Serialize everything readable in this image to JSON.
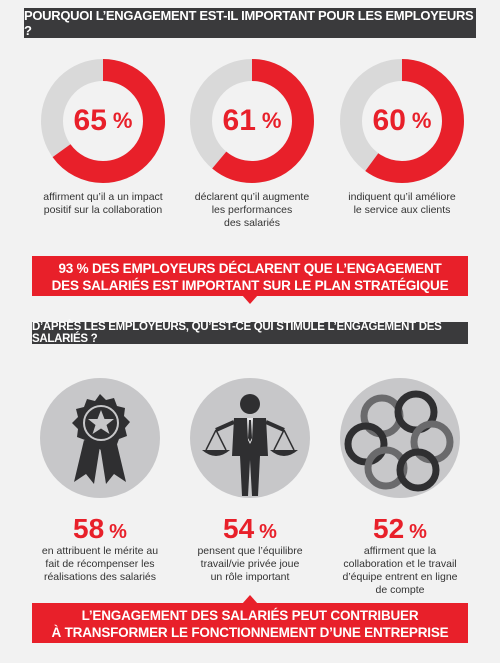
{
  "header": {
    "title": "POURQUOI L’ENGAGEMENT EST-IL IMPORTANT POUR LES EMPLOYEURS ?"
  },
  "stats_top": [
    {
      "value": "65",
      "unit": "%",
      "fraction": 0.65,
      "caption": [
        "affirment qu’il a un impact",
        "positif sur la collaboration"
      ]
    },
    {
      "value": "61",
      "unit": "%",
      "fraction": 0.61,
      "caption": [
        "déclarent qu’il augmente",
        "les performances",
        "des salariés"
      ]
    },
    {
      "value": "60",
      "unit": "%",
      "fraction": 0.6,
      "caption": [
        "indiquent qu’il améliore",
        "le service aux clients"
      ]
    }
  ],
  "highlight": {
    "strong": "93 %",
    "line1_rest": " DES EMPLOYEURS DÉCLARENT QUE L’ENGAGEMENT",
    "line2": "DES SALARIÉS EST IMPORTANT SUR LE PLAN STRATÉGIQUE"
  },
  "section2": {
    "title": "D’APRÈS LES EMPLOYEURS, QU’EST-CE QUI STIMULE L’ENGAGEMENT DES SALARIÉS ?"
  },
  "stats_bottom": [
    {
      "icon": "award-ribbon-icon",
      "value": "58",
      "unit": "%",
      "caption": [
        "en attribuent le mérite au",
        "fait de récompenser les",
        "réalisations des salariés"
      ]
    },
    {
      "icon": "balance-person-icon",
      "value": "54",
      "unit": "%",
      "caption": [
        "pensent que l’équilibre",
        "travail/vie privée joue",
        "un rôle important"
      ]
    },
    {
      "icon": "interlocking-rings-icon",
      "value": "52",
      "unit": "%",
      "caption": [
        "affirment que la",
        "collaboration et le travail",
        "d’équipe entrent en ligne",
        "de compte"
      ]
    }
  ],
  "footer": {
    "line1": "L’ENGAGEMENT DES SALARIÉS PEUT CONTRIBUER",
    "line2": "À TRANSFORMER LE FONCTIONNEMENT D’UNE ENTREPRISE"
  },
  "colors": {
    "accent": "#e8202a",
    "dark": "#3a3a3c",
    "track": "#d9d9d9",
    "icon_bg": "#c7c7c9"
  }
}
